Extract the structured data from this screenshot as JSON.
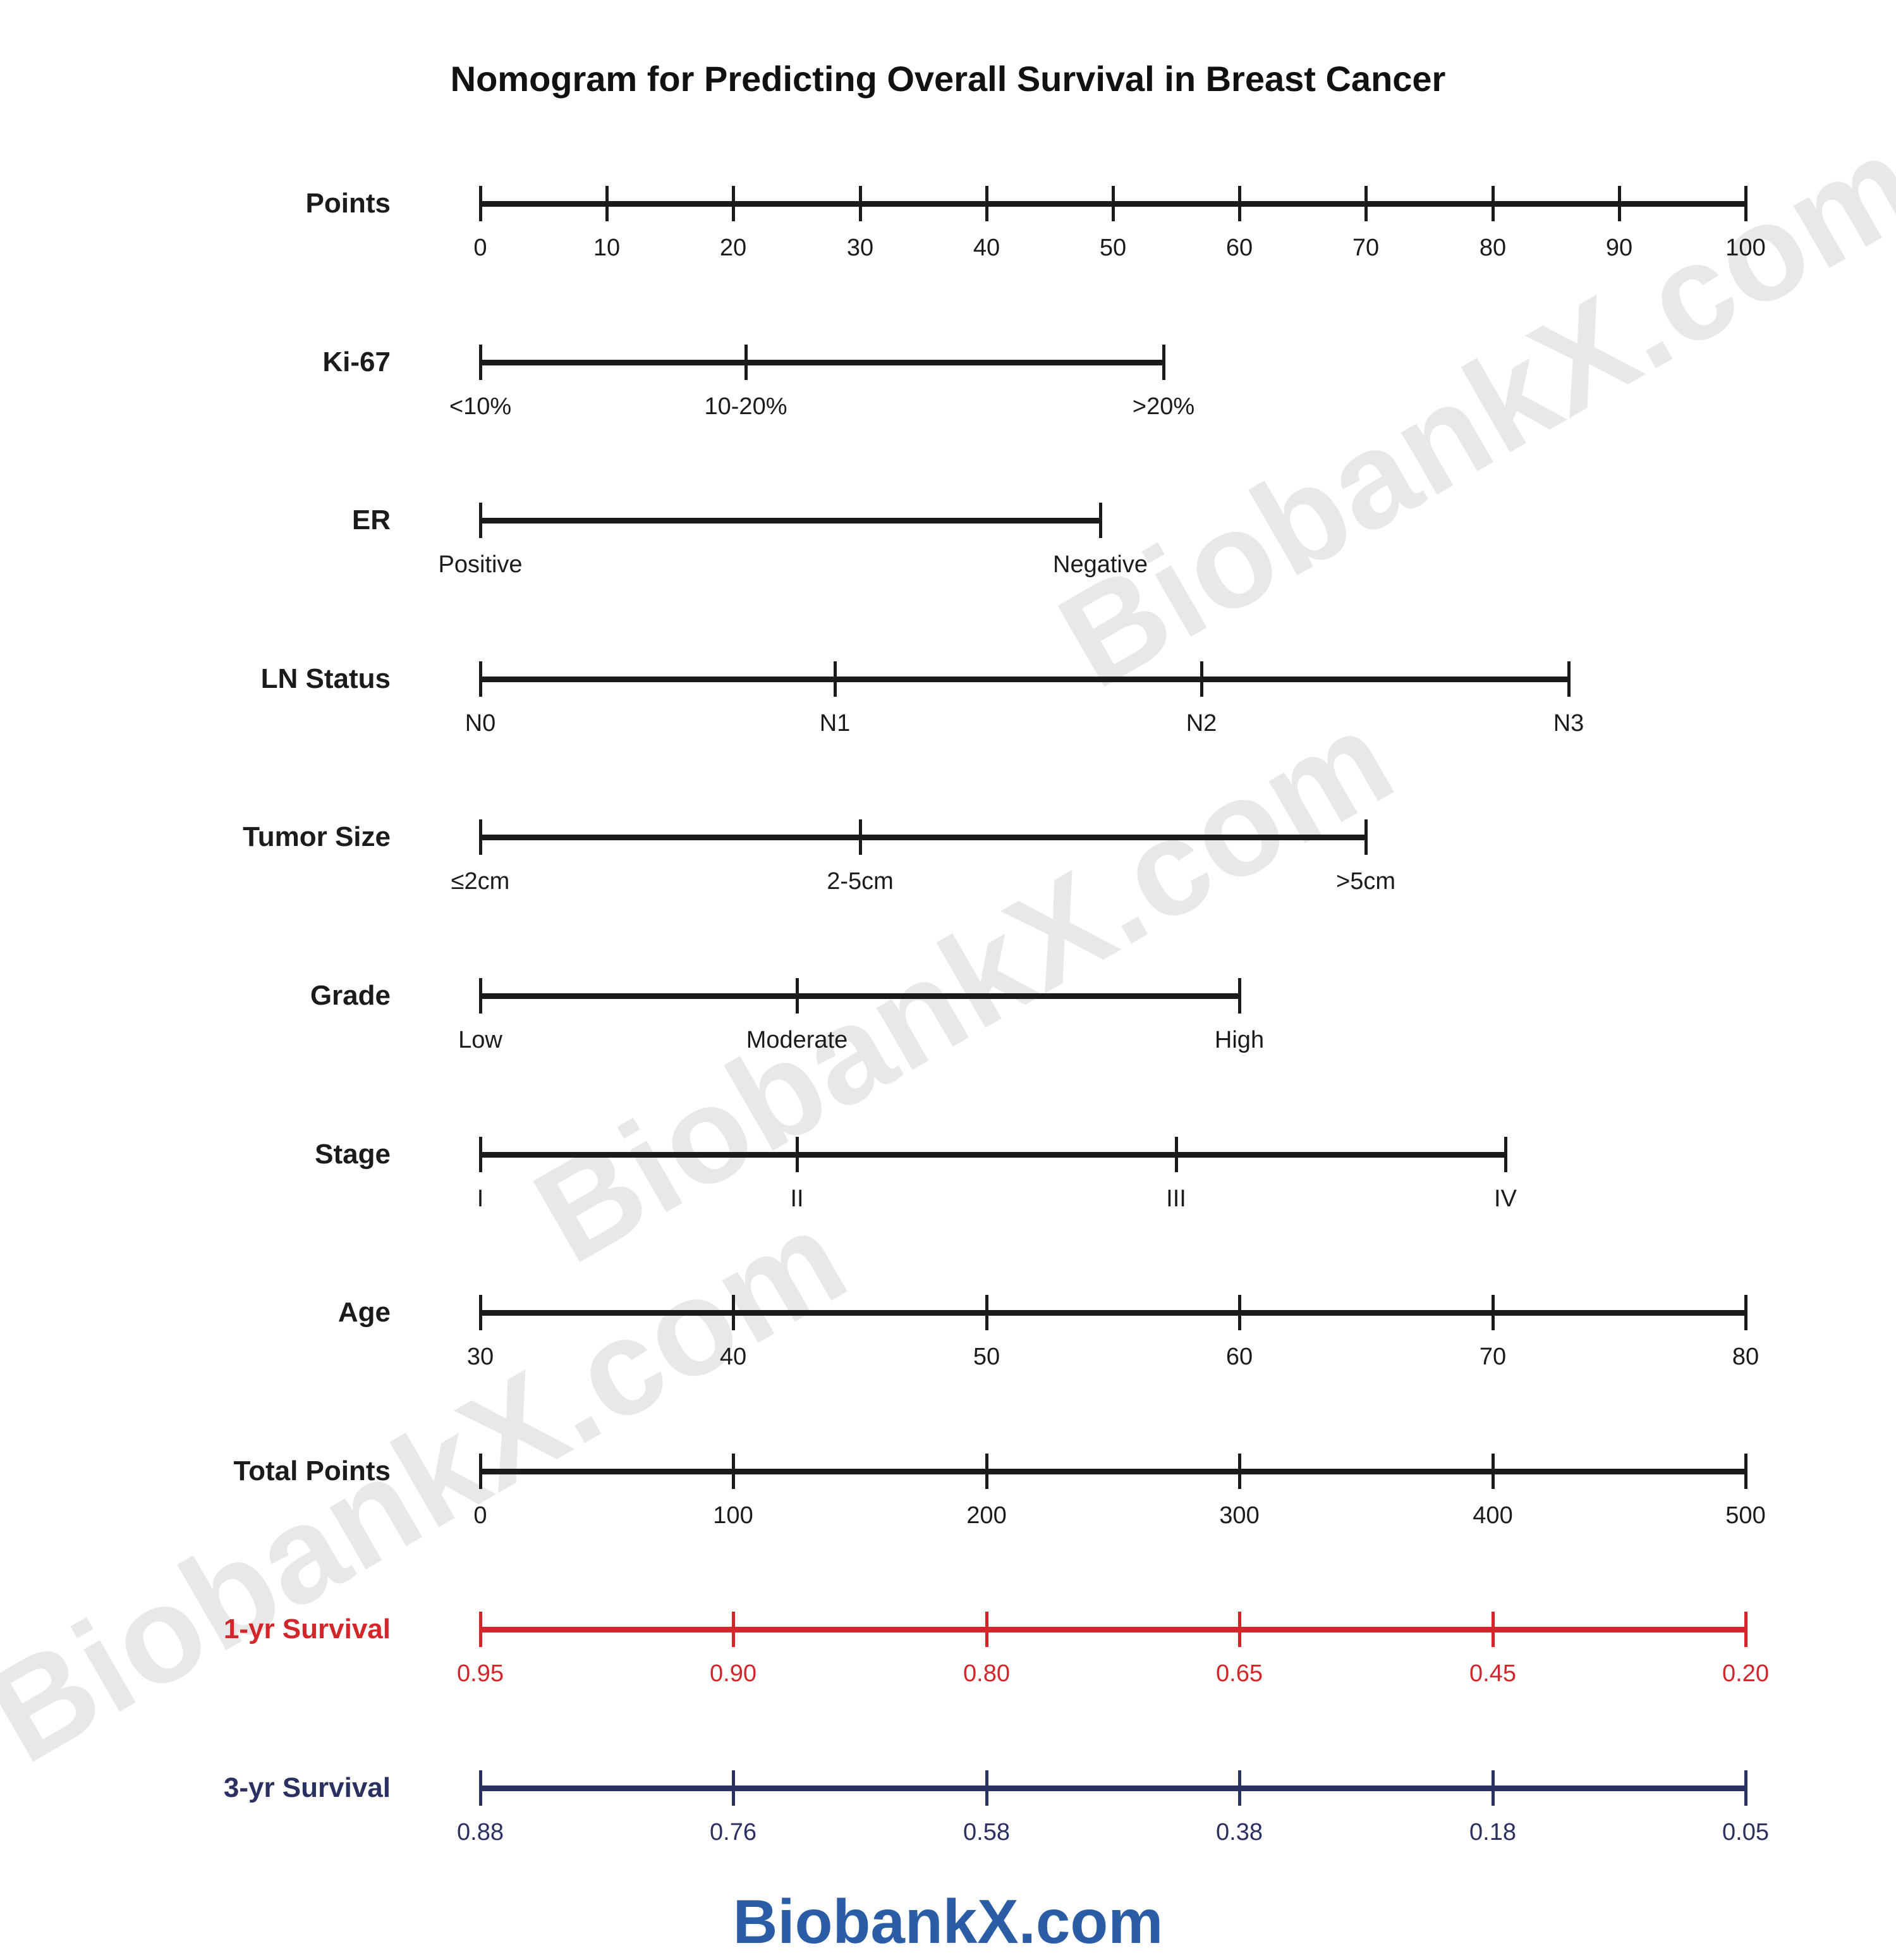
{
  "title": "Nomogram for Predicting Overall Survival in Breast Cancer",
  "footer_logo": "BiobankX.com",
  "watermark": {
    "text": "BiobankX.com"
  },
  "colors": {
    "axis_black": "#1b1b1b",
    "survival_1yr_red": "#d2262b",
    "survival_3yr_navy": "#2a3162",
    "logo_blue": "#2b5ca6",
    "watermark_gray": "#e8e8e8"
  },
  "chart_data": {
    "type": "nomogram",
    "title": "Nomogram for Predicting Overall Survival in Breast Cancer",
    "points_scale": {
      "min": 0,
      "max": 100,
      "step": 10
    },
    "rows": [
      {
        "id": "points",
        "label": "Points",
        "color": "#1b1b1b",
        "ticks": [
          {
            "label": "0",
            "pos": 0
          },
          {
            "label": "10",
            "pos": 10
          },
          {
            "label": "20",
            "pos": 20
          },
          {
            "label": "30",
            "pos": 30
          },
          {
            "label": "40",
            "pos": 40
          },
          {
            "label": "50",
            "pos": 50
          },
          {
            "label": "60",
            "pos": 60
          },
          {
            "label": "70",
            "pos": 70
          },
          {
            "label": "80",
            "pos": 80
          },
          {
            "label": "90",
            "pos": 90
          },
          {
            "label": "100",
            "pos": 100
          }
        ]
      },
      {
        "id": "ki67",
        "label": "Ki-67",
        "color": "#1b1b1b",
        "ticks": [
          {
            "label": "<10%",
            "pos": 0
          },
          {
            "label": "10-20%",
            "pos": 21
          },
          {
            "label": ">20%",
            "pos": 54
          }
        ]
      },
      {
        "id": "er",
        "label": "ER",
        "color": "#1b1b1b",
        "ticks": [
          {
            "label": "Positive",
            "pos": 0
          },
          {
            "label": "Negative",
            "pos": 49
          }
        ]
      },
      {
        "id": "ln-status",
        "label": "LN Status",
        "color": "#1b1b1b",
        "ticks": [
          {
            "label": "N0",
            "pos": 0
          },
          {
            "label": "N1",
            "pos": 28
          },
          {
            "label": "N2",
            "pos": 57
          },
          {
            "label": "N3",
            "pos": 86
          }
        ]
      },
      {
        "id": "tumor-size",
        "label": "Tumor Size",
        "color": "#1b1b1b",
        "ticks": [
          {
            "label": "≤2cm",
            "pos": 0
          },
          {
            "label": "2-5cm",
            "pos": 30
          },
          {
            "label": ">5cm",
            "pos": 70
          }
        ]
      },
      {
        "id": "grade",
        "label": "Grade",
        "color": "#1b1b1b",
        "ticks": [
          {
            "label": "Low",
            "pos": 0
          },
          {
            "label": "Moderate",
            "pos": 25
          },
          {
            "label": "High",
            "pos": 60
          }
        ]
      },
      {
        "id": "stage",
        "label": "Stage",
        "color": "#1b1b1b",
        "ticks": [
          {
            "label": "I",
            "pos": 0
          },
          {
            "label": "II",
            "pos": 25
          },
          {
            "label": "III",
            "pos": 55
          },
          {
            "label": "IV",
            "pos": 81
          }
        ]
      },
      {
        "id": "age",
        "label": "Age",
        "color": "#1b1b1b",
        "ticks": [
          {
            "label": "30",
            "pos": 0
          },
          {
            "label": "40",
            "pos": 20
          },
          {
            "label": "50",
            "pos": 40
          },
          {
            "label": "60",
            "pos": 60
          },
          {
            "label": "70",
            "pos": 80
          },
          {
            "label": "80",
            "pos": 100
          }
        ]
      },
      {
        "id": "total-points",
        "label": "Total Points",
        "color": "#1b1b1b",
        "ticks": [
          {
            "label": "0",
            "pos": 0
          },
          {
            "label": "100",
            "pos": 20
          },
          {
            "label": "200",
            "pos": 40
          },
          {
            "label": "300",
            "pos": 60
          },
          {
            "label": "400",
            "pos": 80
          },
          {
            "label": "500",
            "pos": 100
          }
        ]
      },
      {
        "id": "survival-1yr",
        "label": "1-yr Survival",
        "color": "#d2262b",
        "ticks": [
          {
            "label": "0.95",
            "pos": 0
          },
          {
            "label": "0.90",
            "pos": 20
          },
          {
            "label": "0.80",
            "pos": 40
          },
          {
            "label": "0.65",
            "pos": 60
          },
          {
            "label": "0.45",
            "pos": 80
          },
          {
            "label": "0.20",
            "pos": 100
          }
        ]
      },
      {
        "id": "survival-3yr",
        "label": "3-yr Survival",
        "color": "#2a3162",
        "ticks": [
          {
            "label": "0.88",
            "pos": 0
          },
          {
            "label": "0.76",
            "pos": 20
          },
          {
            "label": "0.58",
            "pos": 40
          },
          {
            "label": "0.38",
            "pos": 60
          },
          {
            "label": "0.18",
            "pos": 80
          },
          {
            "label": "0.05",
            "pos": 100
          }
        ]
      }
    ]
  }
}
